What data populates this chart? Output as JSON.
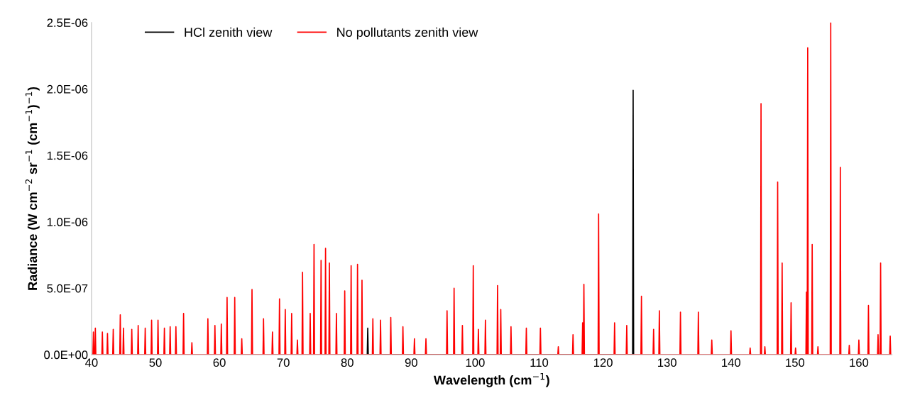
{
  "chart_data": {
    "type": "line",
    "xlabel": "Wavelength (cm$^{−1}$)",
    "ylabel": "Radiance (W cm$^{−2}$ sr$^{−1}$ (cm$^{−1}$)$^{−1}$)",
    "xlim": [
      40,
      165.2
    ],
    "xticks": [
      40,
      50,
      60,
      70,
      80,
      90,
      100,
      110,
      120,
      130,
      140,
      150,
      160
    ],
    "ylim": [
      0,
      2.5e-06
    ],
    "yticks": [
      {
        "value": 0,
        "label": "0.0E+00"
      },
      {
        "value": 5e-07,
        "label": "5.0E-07"
      },
      {
        "value": 1e-06,
        "label": "1.0E-06"
      },
      {
        "value": 1.5e-06,
        "label": "1.5E-06"
      },
      {
        "value": 2e-06,
        "label": "2.0E-06"
      },
      {
        "value": 2.5e-06,
        "label": "2.5E-06"
      }
    ],
    "grid": false,
    "legend": "top",
    "marker": "none",
    "line_style": "solid",
    "series": [
      {
        "name": "HCl zenith view",
        "color": "#000000",
        "x": [
          83.12,
          83.2,
          83.28,
          124.62,
          124.7,
          124.78
        ],
        "values": [
          0,
          2e-07,
          0,
          0,
          1.99e-06,
          0
        ]
      },
      {
        "name": "No pollutants zenith view",
        "color": "#ff0000",
        "x": [
          40.22,
          40.3,
          40.38,
          40.52,
          40.6,
          40.68,
          41.62,
          41.7,
          41.78,
          42.42,
          42.5,
          42.58,
          43.32,
          43.4,
          43.48,
          44.42,
          44.5,
          44.58,
          44.92,
          45.0,
          45.08,
          46.22,
          46.3,
          46.38,
          47.22,
          47.3,
          47.38,
          48.32,
          48.4,
          48.48,
          49.32,
          49.4,
          49.48,
          50.32,
          50.4,
          50.48,
          51.32,
          51.4,
          51.48,
          52.22,
          52.3,
          52.38,
          53.12,
          53.2,
          53.28,
          54.32,
          54.4,
          54.48,
          55.62,
          55.7,
          55.78,
          58.12,
          58.2,
          58.28,
          59.22,
          59.3,
          59.38,
          60.22,
          60.3,
          60.38,
          61.12,
          61.2,
          61.28,
          62.32,
          62.4,
          62.48,
          63.42,
          63.5,
          63.58,
          65.02,
          65.1,
          65.18,
          66.82,
          66.9,
          66.98,
          68.22,
          68.3,
          68.38,
          69.32,
          69.4,
          69.48,
          70.22,
          70.3,
          70.38,
          71.22,
          71.3,
          71.38,
          72.12,
          72.2,
          72.28,
          72.92,
          73.0,
          73.08,
          74.12,
          74.2,
          74.28,
          74.72,
          74.8,
          74.88,
          75.82,
          75.9,
          75.98,
          76.52,
          76.6,
          76.68,
          77.12,
          77.2,
          77.28,
          78.22,
          78.3,
          78.38,
          79.52,
          79.6,
          79.68,
          80.52,
          80.6,
          80.68,
          81.52,
          81.6,
          81.68,
          82.22,
          82.3,
          82.38,
          83.92,
          84.0,
          84.08,
          85.12,
          85.2,
          85.28,
          86.72,
          86.8,
          86.88,
          88.62,
          88.7,
          88.78,
          90.42,
          90.5,
          90.58,
          92.22,
          92.3,
          92.38,
          95.52,
          95.6,
          95.68,
          96.62,
          96.7,
          96.78,
          97.92,
          98.0,
          98.08,
          99.62,
          99.7,
          99.78,
          100.42,
          100.5,
          100.58,
          101.52,
          101.6,
          101.68,
          103.42,
          103.5,
          103.58,
          103.92,
          104.0,
          104.08,
          105.52,
          105.6,
          105.68,
          107.92,
          108.0,
          108.08,
          110.12,
          110.2,
          110.28,
          112.92,
          113.0,
          113.08,
          115.22,
          115.3,
          115.38,
          116.72,
          116.8,
          116.88,
          116.92,
          117.0,
          117.08,
          119.22,
          119.3,
          119.38,
          121.72,
          121.8,
          121.88,
          123.62,
          123.7,
          123.78,
          125.92,
          126.0,
          126.08,
          127.82,
          127.9,
          127.98,
          128.72,
          128.8,
          128.88,
          132.02,
          132.1,
          132.18,
          134.82,
          134.9,
          134.98,
          136.92,
          137.0,
          137.08,
          139.92,
          140.0,
          140.08,
          142.92,
          143.0,
          143.08,
          144.62,
          144.7,
          144.78,
          145.22,
          145.3,
          145.38,
          147.22,
          147.3,
          147.38,
          147.92,
          148.0,
          148.08,
          149.32,
          149.4,
          149.48,
          150.02,
          150.1,
          150.18,
          151.72,
          151.8,
          151.88,
          151.92,
          152.0,
          152.08,
          152.62,
          152.7,
          152.78,
          153.52,
          153.6,
          153.68,
          155.52,
          155.6,
          155.68,
          157.02,
          157.1,
          157.18,
          158.42,
          158.5,
          158.58,
          159.92,
          160.0,
          160.08,
          161.42,
          161.5,
          161.58,
          162.92,
          163.0,
          163.08,
          163.32,
          163.4,
          163.48,
          164.82,
          164.9,
          164.98
        ],
        "values": [
          0,
          1.7e-07,
          0,
          0,
          2e-07,
          0,
          0,
          1.7e-07,
          0,
          0,
          1.6e-07,
          0,
          0,
          1.9e-07,
          0,
          0,
          3e-07,
          0,
          0,
          2e-07,
          0,
          0,
          1.9e-07,
          0,
          0,
          2.2e-07,
          0,
          0,
          2e-07,
          0,
          0,
          2.6e-07,
          0,
          0,
          2.6e-07,
          0,
          0,
          2e-07,
          0,
          0,
          2.1e-07,
          0,
          0,
          2.1e-07,
          0,
          0,
          3.1e-07,
          0,
          0,
          9e-08,
          0,
          0,
          2.7e-07,
          0,
          0,
          2.2e-07,
          0,
          0,
          2.3e-07,
          0,
          0,
          4.3e-07,
          0,
          0,
          4.3e-07,
          0,
          0,
          1.2e-07,
          0,
          0,
          4.9e-07,
          0,
          0,
          2.7e-07,
          0,
          0,
          1.7e-07,
          0,
          0,
          4.2e-07,
          0,
          0,
          3.4e-07,
          0,
          0,
          3.1e-07,
          0,
          0,
          1.1e-07,
          0,
          0,
          6.2e-07,
          0,
          0,
          3.1e-07,
          0,
          0,
          8.3e-07,
          0,
          0,
          7.1e-07,
          0,
          0,
          8e-07,
          0,
          0,
          6.9e-07,
          0,
          0,
          3.1e-07,
          0,
          0,
          4.8e-07,
          0,
          0,
          6.7e-07,
          0,
          0,
          6.8e-07,
          0,
          0,
          5.6e-07,
          0,
          0,
          2.7e-07,
          0,
          0,
          2.6e-07,
          0,
          0,
          2.8e-07,
          0,
          0,
          2.1e-07,
          0,
          0,
          1.2e-07,
          0,
          0,
          1.2e-07,
          0,
          0,
          3.3e-07,
          0,
          0,
          5e-07,
          0,
          0,
          2.2e-07,
          0,
          0,
          6.7e-07,
          0,
          0,
          1.9e-07,
          0,
          0,
          2.6e-07,
          0,
          0,
          5.2e-07,
          0,
          0,
          3.4e-07,
          0,
          0,
          2.1e-07,
          0,
          0,
          2e-07,
          0,
          0,
          2e-07,
          0,
          0,
          6e-08,
          0,
          0,
          1.5e-07,
          0,
          0,
          2.4e-07,
          0,
          0,
          5.3e-07,
          0,
          0,
          1.06e-06,
          0,
          0,
          2.4e-07,
          0,
          0,
          2.2e-07,
          0,
          0,
          4.4e-07,
          0,
          0,
          1.9e-07,
          0,
          0,
          3.3e-07,
          0,
          0,
          3.2e-07,
          0,
          0,
          3.2e-07,
          0,
          0,
          1.1e-07,
          0,
          0,
          1.8e-07,
          0,
          0,
          5e-08,
          0,
          0,
          1.89e-06,
          0,
          0,
          6e-08,
          0,
          0,
          1.3e-06,
          0,
          0,
          6.9e-07,
          0,
          0,
          3.9e-07,
          0,
          0,
          5e-08,
          0,
          0,
          4.7e-07,
          0,
          0,
          2.31e-06,
          0,
          0,
          8.3e-07,
          0,
          0,
          6e-08,
          0,
          0,
          2.5e-06,
          0,
          0,
          1.41e-06,
          0,
          0,
          7e-08,
          0,
          0,
          1.1e-07,
          0,
          0,
          3.7e-07,
          0,
          0,
          1.5e-07,
          0,
          0,
          6.9e-07,
          0,
          0,
          1.4e-07,
          0
        ]
      }
    ]
  }
}
